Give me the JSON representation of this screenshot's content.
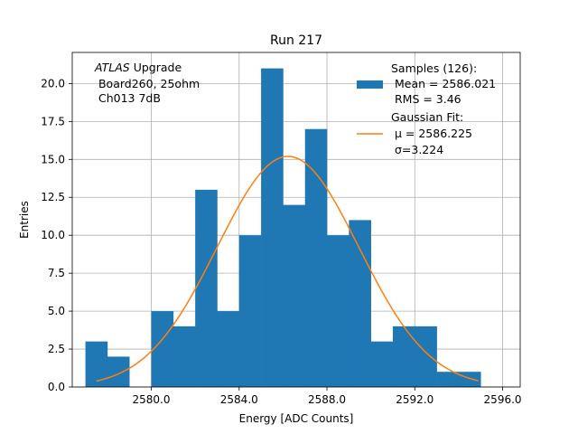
{
  "chart_data": {
    "type": "bar",
    "title": "Run 217",
    "xlabel": "Energy [ADC Counts]",
    "ylabel": "Entries",
    "xlim": [
      2576.4,
      2596.8
    ],
    "ylim": [
      0,
      22.05
    ],
    "grid": true,
    "xticks": [
      2580.0,
      2584.0,
      2588.0,
      2592.0,
      2596.0
    ],
    "xtick_labels": [
      "2580.0",
      "2584.0",
      "2588.0",
      "2592.0",
      "2596.0"
    ],
    "yticks": [
      0.0,
      2.5,
      5.0,
      7.5,
      10.0,
      12.5,
      15.0,
      17.5,
      20.0
    ],
    "ytick_labels": [
      "0.0",
      "2.5",
      "5.0",
      "7.5",
      "10.0",
      "12.5",
      "15.0",
      "17.5",
      "20.0"
    ],
    "bin_edges": [
      2577.0,
      2578.0,
      2579.0,
      2580.0,
      2581.0,
      2582.0,
      2583.0,
      2584.0,
      2585.0,
      2586.0,
      2587.0,
      2588.0,
      2589.0,
      2590.0,
      2591.0,
      2592.0,
      2593.0,
      2594.0,
      2595.0
    ],
    "counts": [
      3,
      2,
      0,
      5,
      4,
      13,
      5,
      10,
      21,
      12,
      17,
      10,
      11,
      3,
      4,
      4,
      1,
      1
    ],
    "bar_color": "#1f77b4",
    "fit": {
      "type": "gaussian",
      "mu": 2586.225,
      "sigma": 3.224,
      "peak": 15.2,
      "x_range": [
        2577.5,
        2594.9
      ],
      "color": "#ff7f0e"
    },
    "annotation": {
      "line1_italic": "ATLAS",
      "line1_rest": " Upgrade",
      "line2": " Board260, 25ohm",
      "line3": " Ch013 7dB"
    },
    "legend": {
      "position": "top-right",
      "samples_label": "Samples (126):",
      "samples_mean": " Mean = 2586.021",
      "samples_rms": " RMS = 3.46",
      "fit_label": "Gaussian Fit:",
      "fit_mu": " μ = 2586.225",
      "fit_sigma": " σ=3.224"
    }
  }
}
